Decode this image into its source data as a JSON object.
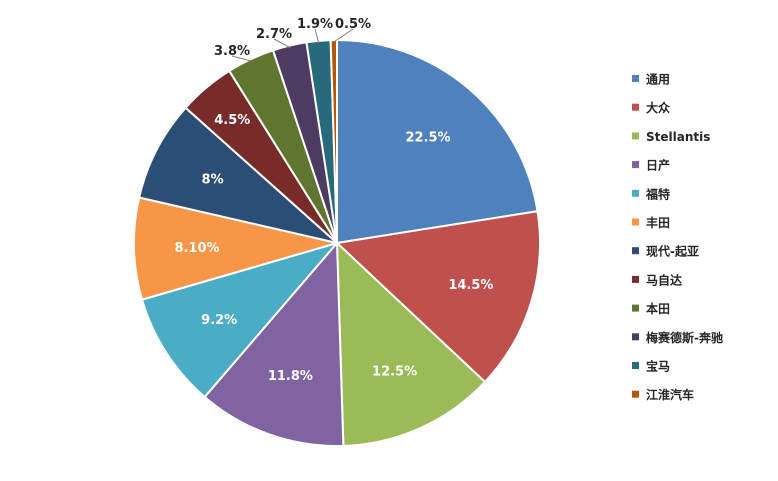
{
  "chart_data": {
    "type": "pie",
    "slices": [
      {
        "name": "通用",
        "value": 22.5,
        "label": "22.5%",
        "color": "#4F81BD"
      },
      {
        "name": "大众",
        "value": 14.5,
        "label": "14.5%",
        "color": "#C0504D"
      },
      {
        "name": "Stellantis",
        "value": 12.5,
        "label": "12.5%",
        "color": "#9BBB59"
      },
      {
        "name": "日产",
        "value": 11.8,
        "label": "11.8%",
        "color": "#8064A2"
      },
      {
        "name": "福特",
        "value": 9.2,
        "label": "9.2%",
        "color": "#4BACC6"
      },
      {
        "name": "丰田",
        "value": 8.1,
        "label": "8.10%",
        "color": "#F79646"
      },
      {
        "name": "现代-起亚",
        "value": 8.0,
        "label": "8%",
        "color": "#2C4D75"
      },
      {
        "name": "马自达",
        "value": 4.5,
        "label": "4.5%",
        "color": "#772C2A"
      },
      {
        "name": "本田",
        "value": 3.8,
        "label": "3.8%",
        "color": "#5F7530"
      },
      {
        "name": "梅赛德斯-奔驰",
        "value": 2.7,
        "label": "2.7%",
        "color": "#4D3B62"
      },
      {
        "name": "宝马",
        "value": 1.9,
        "label": "1.9%",
        "color": "#276A7C"
      },
      {
        "name": "江淮汽车",
        "value": 0.5,
        "label": "0.5%",
        "color": "#B65708"
      }
    ],
    "legend_position": "right"
  }
}
